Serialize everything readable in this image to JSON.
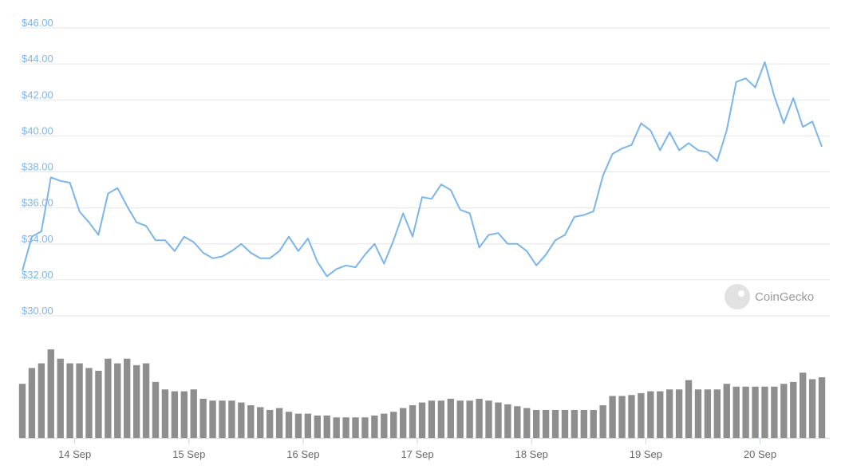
{
  "chart_data": {
    "type": "line",
    "watermark": "CoinGecko",
    "x": [
      13,
      15,
      17,
      19,
      21,
      23,
      25,
      27,
      29,
      31,
      33,
      35,
      37,
      39,
      41,
      43,
      45,
      47,
      49,
      51,
      53,
      55,
      57,
      59,
      61,
      63,
      65,
      67,
      69,
      71,
      73,
      75,
      77,
      79,
      81,
      83,
      85,
      87,
      89,
      91,
      93,
      95,
      97,
      99,
      101,
      103,
      105,
      107,
      109,
      111,
      113,
      115,
      117,
      119,
      121,
      123,
      125,
      127,
      129,
      131,
      133,
      135,
      137,
      139,
      141,
      143,
      145,
      147,
      149,
      151,
      153,
      155,
      157,
      159,
      161,
      163,
      165,
      167,
      169,
      171,
      173,
      175,
      177,
      179,
      181
    ],
    "series": [
      {
        "color": "#7cb5ec",
        "values": [
          32.5,
          34.4,
          34.7,
          37.7,
          37.5,
          37.4,
          35.8,
          35.2,
          34.5,
          36.8,
          37.1,
          36.1,
          35.2,
          35.0,
          34.2,
          34.2,
          33.6,
          34.4,
          34.1,
          33.5,
          33.2,
          33.3,
          33.6,
          34.0,
          33.5,
          33.2,
          33.2,
          33.6,
          34.4,
          33.6,
          34.3,
          33.0,
          32.2,
          32.6,
          32.8,
          32.7,
          33.4,
          34.0,
          32.9,
          34.2,
          35.7,
          34.4,
          36.6,
          36.5,
          37.3,
          37.0,
          35.9,
          35.7,
          33.8,
          34.5,
          34.6,
          34.0,
          34.0,
          33.6,
          32.8,
          33.4,
          34.2,
          34.5,
          35.5,
          35.6,
          35.8,
          37.8,
          39.0,
          39.3,
          39.5,
          40.7,
          40.3,
          39.2,
          40.2,
          39.2,
          39.6,
          39.2,
          39.1,
          38.6,
          40.3,
          43.0,
          43.2,
          42.7,
          44.1,
          42.2,
          40.7,
          42.1,
          40.5,
          40.8,
          39.4
        ]
      }
    ],
    "volume": {
      "color": "#8e8e8e",
      "values": [
        58,
        75,
        80,
        95,
        85,
        80,
        80,
        75,
        72,
        85,
        80,
        85,
        78,
        80,
        60,
        52,
        50,
        50,
        52,
        42,
        40,
        40,
        40,
        38,
        35,
        33,
        30,
        32,
        28,
        26,
        26,
        24,
        24,
        22,
        22,
        22,
        22,
        24,
        26,
        28,
        32,
        35,
        38,
        40,
        40,
        42,
        40,
        40,
        42,
        40,
        38,
        36,
        34,
        32,
        30,
        30,
        30,
        30,
        30,
        30,
        30,
        35,
        45,
        45,
        46,
        48,
        50,
        50,
        52,
        52,
        62,
        52,
        52,
        52,
        58,
        55,
        55,
        55,
        55,
        55,
        58,
        60,
        70,
        63,
        65
      ]
    },
    "xlim": [
      13,
      182
    ],
    "xticks": [
      {
        "value": 24,
        "label": "14 Sep"
      },
      {
        "value": 48,
        "label": "15 Sep"
      },
      {
        "value": 72,
        "label": "16 Sep"
      },
      {
        "value": 96,
        "label": "17 Sep"
      },
      {
        "value": 120,
        "label": "18 Sep"
      },
      {
        "value": 144,
        "label": "19 Sep"
      },
      {
        "value": 168,
        "label": "20 Sep"
      }
    ],
    "ylim": [
      30,
      46
    ],
    "yticks": [
      {
        "value": 30,
        "label": "$30.00"
      },
      {
        "value": 32,
        "label": "$32.00"
      },
      {
        "value": 34,
        "label": "$34.00"
      },
      {
        "value": 36,
        "label": "$36.00"
      },
      {
        "value": 38,
        "label": "$38.00"
      },
      {
        "value": 40,
        "label": "$40.00"
      },
      {
        "value": 42,
        "label": "$42.00"
      },
      {
        "value": 44,
        "label": "$44.00"
      },
      {
        "value": 46,
        "label": "$46.00"
      }
    ],
    "grid": true
  }
}
